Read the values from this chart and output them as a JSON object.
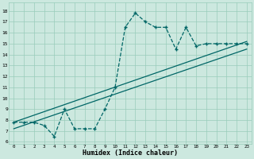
{
  "xlabel": "Humidex (Indice chaleur)",
  "xlim": [
    -0.5,
    23.5
  ],
  "ylim": [
    5.8,
    18.8
  ],
  "yticks": [
    6,
    7,
    8,
    9,
    10,
    11,
    12,
    13,
    14,
    15,
    16,
    17,
    18
  ],
  "xticks": [
    0,
    1,
    2,
    3,
    4,
    5,
    6,
    7,
    8,
    9,
    10,
    11,
    12,
    13,
    14,
    15,
    16,
    17,
    18,
    19,
    20,
    21,
    22,
    23
  ],
  "bg_color": "#cce8df",
  "grid_color": "#99ccbb",
  "line_color": "#006666",
  "x_data": [
    0,
    1,
    2,
    3,
    4,
    5,
    6,
    7,
    8,
    9,
    10,
    11,
    12,
    13,
    14,
    15,
    16,
    17,
    18,
    19,
    20,
    21,
    22,
    23
  ],
  "y_data": [
    7.8,
    7.8,
    7.8,
    7.5,
    6.5,
    9.0,
    7.2,
    7.2,
    7.2,
    9.0,
    11.0,
    16.5,
    17.8,
    17.0,
    16.5,
    16.5,
    14.5,
    16.5,
    14.8,
    15.0,
    15.0,
    15.0,
    15.0,
    15.0
  ],
  "trend1_x": [
    0,
    23
  ],
  "trend1_y": [
    7.8,
    15.2
  ],
  "trend2_x": [
    0,
    23
  ],
  "trend2_y": [
    7.2,
    14.5
  ]
}
